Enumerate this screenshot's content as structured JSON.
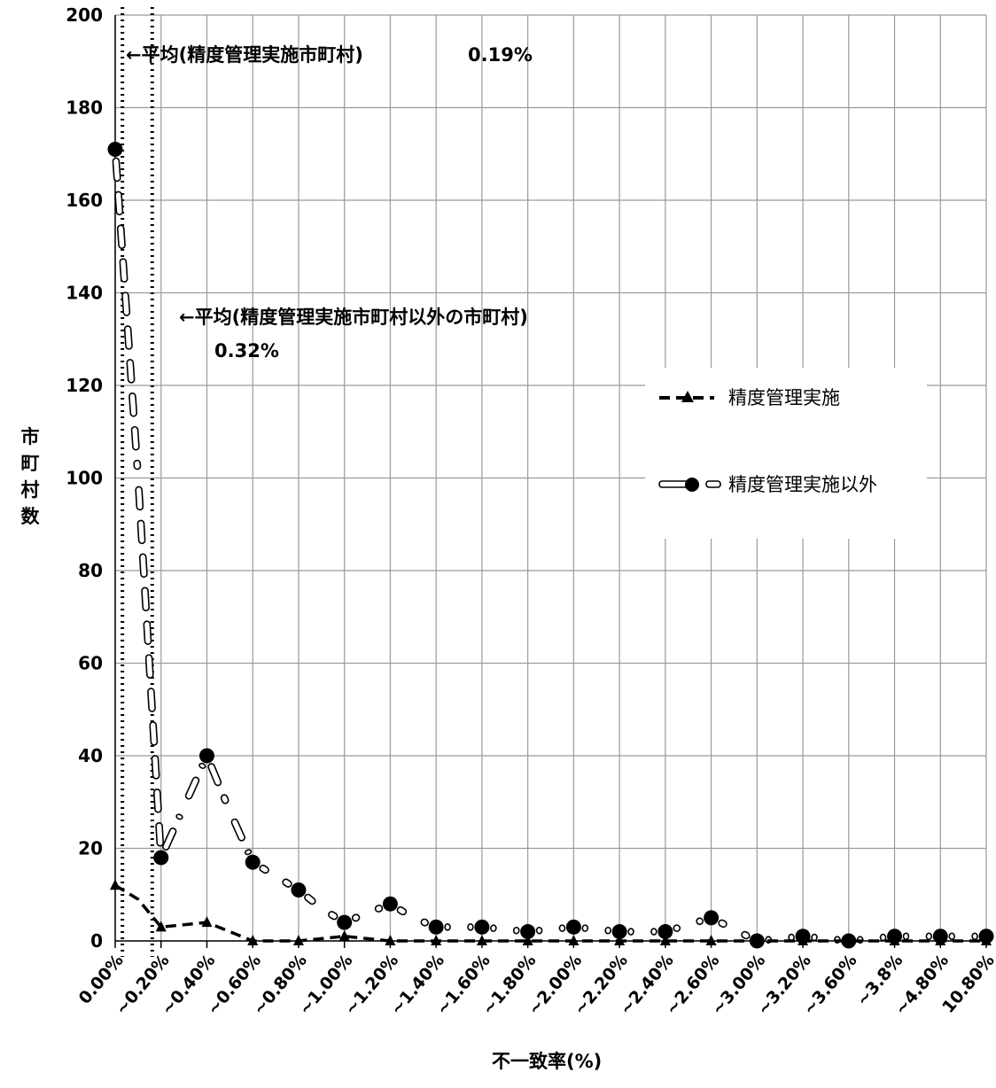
{
  "chart_data": {
    "type": "line",
    "xlabel": "不一致率(%)",
    "ylabel": "市町村数",
    "ylim": [
      0,
      200
    ],
    "yticks": [
      0,
      20,
      40,
      60,
      80,
      100,
      120,
      140,
      160,
      180,
      200
    ],
    "grid": true,
    "legend_position": "right",
    "categories": [
      "0.00%",
      "",
      "~0.20%",
      "",
      "~0.40%",
      "",
      "~0.60%",
      "",
      "~0.80%",
      "",
      "~1.00%",
      "",
      "~1.20%",
      "",
      "~1.40%",
      "",
      "~1.60%",
      "",
      "~1.80%",
      "",
      "~2.00%",
      "",
      "~2.20%",
      "",
      "~2.40%",
      "",
      "~2.60%",
      "",
      "~3.00%",
      "",
      "~3.20%",
      "",
      "~3.60%",
      "",
      "~3.8%",
      "",
      "~4.80%",
      "",
      "10.80%"
    ],
    "series": [
      {
        "name": "精度管理実施",
        "color": "#000000",
        "marker": "triangle",
        "line": "dashed",
        "values": [
          12,
          9,
          3,
          3.5,
          4,
          2,
          0,
          0,
          0,
          0.5,
          1,
          0.5,
          0,
          0,
          0,
          0,
          0,
          0,
          0,
          0,
          0,
          0,
          0,
          0,
          0,
          0,
          0,
          0,
          0,
          0,
          0,
          0,
          0,
          0,
          0,
          0,
          0,
          0,
          0
        ]
      },
      {
        "name": "精度管理実施以外",
        "color": "#000000",
        "marker": "circle",
        "line": "hollow-dash",
        "values": [
          171,
          100,
          18,
          29,
          40,
          28,
          17,
          14,
          11,
          7,
          4,
          6,
          8,
          5,
          3,
          3,
          3,
          2.5,
          2,
          2.5,
          3,
          2.5,
          2,
          2,
          2,
          3.5,
          5,
          2.5,
          0,
          0.5,
          1,
          0.5,
          0,
          0.5,
          1,
          1,
          1,
          1,
          1
        ]
      }
    ],
    "reference_lines": [
      {
        "x_value": 0.19,
        "label": "←平均(精度管理実施市町村)",
        "value_text": "0.19%"
      },
      {
        "x_value": 0.32,
        "label": "←平均(精度管理実施市町村以外の市町村)",
        "value_text": "0.32%"
      }
    ]
  }
}
